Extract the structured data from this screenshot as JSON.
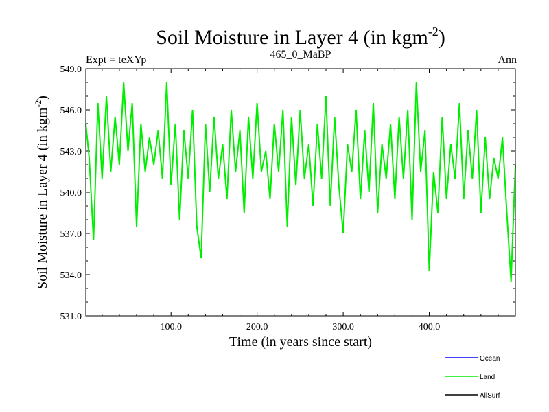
{
  "chart_data": {
    "type": "line",
    "title": {
      "main": "Soil Moisture in Layer 4 (in kgm",
      "sup": "-2",
      "end": ")"
    },
    "subtitle_left": "Expt = teXYp",
    "subtitle_center": "465_0_MaBP",
    "subtitle_right": "Ann",
    "ylabel": {
      "main": "Soil Moisture in Layer 4 (in kgm",
      "sup": "-2",
      "end": ")"
    },
    "xlabel": "Time (in years since start)",
    "xlim": [
      1,
      500
    ],
    "ylim": [
      531.0,
      549.0
    ],
    "yticks": [
      531.0,
      534.0,
      537.0,
      540.0,
      543.0,
      546.0,
      549.0
    ],
    "ytick_labels": [
      "531.0",
      "534.0",
      "537.0",
      "540.0",
      "543.0",
      "546.0",
      "549.0"
    ],
    "xticks": [
      100,
      200,
      300,
      400
    ],
    "xtick_labels": [
      "100.0",
      "200.0",
      "300.0",
      "400.0"
    ],
    "legend_position": "bottom-right",
    "series": [
      {
        "name": "Ocean",
        "color": "#0000ff",
        "x": [],
        "values": []
      },
      {
        "name": "Land",
        "color": "#00ee00",
        "x": [
          1,
          5,
          10,
          15,
          20,
          25,
          30,
          35,
          40,
          45,
          50,
          55,
          60,
          65,
          70,
          75,
          80,
          85,
          90,
          95,
          100,
          105,
          110,
          115,
          120,
          125,
          130,
          135,
          140,
          145,
          150,
          155,
          160,
          165,
          170,
          175,
          180,
          185,
          190,
          195,
          200,
          205,
          210,
          215,
          220,
          225,
          230,
          235,
          240,
          245,
          250,
          255,
          260,
          265,
          270,
          275,
          280,
          285,
          290,
          295,
          300,
          305,
          310,
          315,
          320,
          325,
          330,
          335,
          340,
          345,
          350,
          355,
          360,
          365,
          370,
          375,
          380,
          385,
          390,
          395,
          400,
          405,
          410,
          415,
          420,
          425,
          430,
          435,
          440,
          445,
          450,
          455,
          460,
          465,
          470,
          475,
          480,
          485,
          490,
          495,
          500
        ],
        "values": [
          545.0,
          542.5,
          536.5,
          546.5,
          541.0,
          547.0,
          541.5,
          545.5,
          542.0,
          548.0,
          543.0,
          546.5,
          537.5,
          545.0,
          541.5,
          544.0,
          542.0,
          544.5,
          541.0,
          548.0,
          540.5,
          545.0,
          538.0,
          544.5,
          541.0,
          546.0,
          537.5,
          535.2,
          545.0,
          540.0,
          545.5,
          541.0,
          543.5,
          539.5,
          546.0,
          541.5,
          544.5,
          538.5,
          545.5,
          541.0,
          546.5,
          541.5,
          543.0,
          539.5,
          545.0,
          541.5,
          546.0,
          537.5,
          545.5,
          540.5,
          546.0,
          541.0,
          543.5,
          539.0,
          545.0,
          541.0,
          547.0,
          539.0,
          545.5,
          540.5,
          537.0,
          543.5,
          541.5,
          546.0,
          539.5,
          544.5,
          540.0,
          546.5,
          538.5,
          543.5,
          541.0,
          545.0,
          539.5,
          545.5,
          541.0,
          546.0,
          538.0,
          548.0,
          541.5,
          544.5,
          534.3,
          541.5,
          538.5,
          545.5,
          539.5,
          543.5,
          541.0,
          546.5,
          539.5,
          544.5,
          541.0,
          546.0,
          538.5,
          544.0,
          539.5,
          542.5,
          541.0,
          544.0,
          538.5,
          533.5,
          542.0
        ]
      },
      {
        "name": "AllSurf",
        "color": "#000000",
        "x": [],
        "values": []
      }
    ]
  }
}
